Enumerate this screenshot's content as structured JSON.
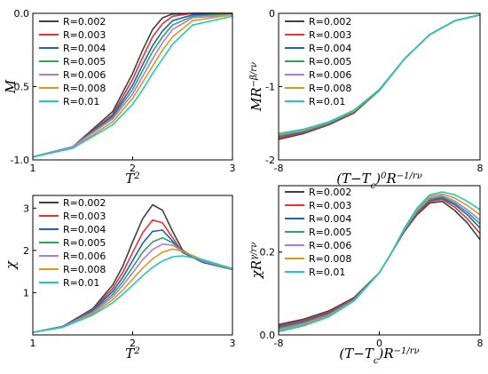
{
  "chart_data": [
    {
      "type": "line",
      "xlabel": "T",
      "xlabel_sup": "2",
      "ylabel": "M",
      "xlim": [
        1,
        3
      ],
      "ylim": [
        -1.0,
        0.0
      ],
      "xticks": [
        1,
        2,
        3
      ],
      "xtick_labels": [
        "1",
        "2",
        "3"
      ],
      "yticks": [
        -1.0,
        -0.5,
        0.0
      ],
      "ytick_labels": [
        "-1.0",
        "-0.5",
        "0.0"
      ],
      "legend": "top-left",
      "grid": false,
      "series": [
        {
          "name": "R=0.002",
          "color": "#404040",
          "x": [
            1.0,
            1.4,
            1.8,
            2.0,
            2.1,
            2.2,
            2.3,
            2.4,
            2.6,
            3.0
          ],
          "y": [
            -0.98,
            -0.91,
            -0.67,
            -0.41,
            -0.25,
            -0.11,
            -0.03,
            -0.005,
            0.0,
            0.0
          ]
        },
        {
          "name": "R=0.003",
          "color": "#e8332f",
          "x": [
            1.0,
            1.4,
            1.8,
            2.0,
            2.1,
            2.2,
            2.3,
            2.4,
            2.6,
            3.0
          ],
          "y": [
            -0.98,
            -0.91,
            -0.69,
            -0.45,
            -0.3,
            -0.16,
            -0.07,
            -0.02,
            0.0,
            0.0
          ]
        },
        {
          "name": "R=0.004",
          "color": "#1f5fc7",
          "x": [
            1.0,
            1.4,
            1.8,
            2.0,
            2.1,
            2.2,
            2.3,
            2.4,
            2.6,
            3.0
          ],
          "y": [
            -0.98,
            -0.91,
            -0.7,
            -0.49,
            -0.35,
            -0.22,
            -0.12,
            -0.05,
            -0.01,
            0.0
          ]
        },
        {
          "name": "R=0.005",
          "color": "#2ea55d",
          "x": [
            1.0,
            1.4,
            1.8,
            2.0,
            2.1,
            2.2,
            2.3,
            2.4,
            2.6,
            3.0
          ],
          "y": [
            -0.98,
            -0.91,
            -0.71,
            -0.52,
            -0.39,
            -0.26,
            -0.16,
            -0.08,
            -0.02,
            0.0
          ]
        },
        {
          "name": "R=0.006",
          "color": "#b07ae0",
          "x": [
            1.0,
            1.4,
            1.8,
            2.0,
            2.1,
            2.2,
            2.3,
            2.4,
            2.6,
            3.0
          ],
          "y": [
            -0.98,
            -0.91,
            -0.72,
            -0.55,
            -0.43,
            -0.31,
            -0.2,
            -0.11,
            -0.03,
            -0.01
          ]
        },
        {
          "name": "R=0.008",
          "color": "#d99a1c",
          "x": [
            1.0,
            1.4,
            1.8,
            2.0,
            2.1,
            2.2,
            2.3,
            2.4,
            2.6,
            3.0
          ],
          "y": [
            -0.98,
            -0.92,
            -0.74,
            -0.58,
            -0.47,
            -0.36,
            -0.25,
            -0.16,
            -0.05,
            -0.01
          ]
        },
        {
          "name": "R=0.01",
          "color": "#1fc9c0",
          "x": [
            1.0,
            1.4,
            1.8,
            2.0,
            2.1,
            2.2,
            2.3,
            2.4,
            2.6,
            3.0
          ],
          "y": [
            -0.98,
            -0.92,
            -0.76,
            -0.62,
            -0.52,
            -0.41,
            -0.31,
            -0.21,
            -0.08,
            -0.02
          ]
        }
      ]
    },
    {
      "type": "line",
      "xlabel": "(T−T",
      "xlabel_sub": "c",
      "xlabel_rest": ")",
      "xlabel_overlap": "0",
      "xlabel_tail": "R",
      "xlabel_sup": "−1/rν",
      "ylabel": "MR",
      "ylabel_sup": "−β/rν",
      "xlim": [
        -8,
        8
      ],
      "ylim": [
        -2,
        0
      ],
      "xticks": [
        -8,
        8
      ],
      "xtick_labels": [
        "-8",
        "8"
      ],
      "yticks": [
        -2,
        -1,
        0
      ],
      "ytick_labels": [
        "-2",
        "-1",
        "0"
      ],
      "legend": "top-left",
      "grid": false,
      "series": [
        {
          "name": "R=0.002",
          "color": "#404040",
          "x": [
            -8,
            -6,
            -4,
            -2,
            0,
            2,
            4,
            6,
            8
          ],
          "y": [
            -1.72,
            -1.64,
            -1.52,
            -1.36,
            -1.05,
            -0.62,
            -0.29,
            -0.1,
            -0.02
          ]
        },
        {
          "name": "R=0.003",
          "color": "#e8332f",
          "x": [
            -8,
            -6,
            -4,
            -2,
            0,
            2,
            4,
            6,
            8
          ],
          "y": [
            -1.7,
            -1.63,
            -1.51,
            -1.35,
            -1.05,
            -0.62,
            -0.29,
            -0.1,
            -0.02
          ]
        },
        {
          "name": "R=0.004",
          "color": "#1f5fc7",
          "x": [
            -8,
            -6,
            -4,
            -2,
            0,
            2,
            4,
            6,
            8
          ],
          "y": [
            -1.68,
            -1.62,
            -1.5,
            -1.34,
            -1.05,
            -0.62,
            -0.29,
            -0.1,
            -0.02
          ]
        },
        {
          "name": "R=0.005",
          "color": "#2ea55d",
          "x": [
            -8,
            -6,
            -4,
            -2,
            0,
            2,
            4,
            6,
            8
          ],
          "y": [
            -1.67,
            -1.61,
            -1.5,
            -1.34,
            -1.05,
            -0.62,
            -0.29,
            -0.1,
            -0.02
          ]
        },
        {
          "name": "R=0.006",
          "color": "#b07ae0",
          "x": [
            -8,
            -6,
            -4,
            -2,
            0,
            2,
            4,
            6,
            8
          ],
          "y": [
            -1.66,
            -1.6,
            -1.49,
            -1.33,
            -1.04,
            -0.62,
            -0.29,
            -0.1,
            -0.02
          ]
        },
        {
          "name": "R=0.008",
          "color": "#d99a1c",
          "x": [
            -8,
            -6,
            -4,
            -2,
            0,
            2,
            4,
            6,
            8
          ],
          "y": [
            -1.65,
            -1.59,
            -1.48,
            -1.33,
            -1.04,
            -0.62,
            -0.29,
            -0.1,
            -0.02
          ]
        },
        {
          "name": "R=0.01",
          "color": "#1fc9c0",
          "x": [
            -8,
            -6,
            -4,
            -2,
            0,
            2,
            4,
            6,
            8
          ],
          "y": [
            -1.64,
            -1.58,
            -1.48,
            -1.32,
            -1.04,
            -0.62,
            -0.29,
            -0.1,
            -0.02
          ]
        }
      ]
    },
    {
      "type": "line",
      "xlabel": "T",
      "xlabel_sup": "2",
      "ylabel": "χ",
      "xlim": [
        1,
        3
      ],
      "ylim": [
        0,
        3.3
      ],
      "xticks": [
        1,
        2,
        3
      ],
      "xtick_labels": [
        "1",
        "2",
        "3"
      ],
      "yticks": [
        1,
        2,
        3
      ],
      "ytick_labels": [
        "1",
        "2",
        "3"
      ],
      "legend": "top-left",
      "grid": false,
      "series": [
        {
          "name": "R=0.002",
          "color": "#404040",
          "x": [
            1.0,
            1.3,
            1.6,
            1.8,
            1.9,
            2.0,
            2.1,
            2.2,
            2.3,
            2.4,
            2.5,
            2.7,
            3.0
          ],
          "y": [
            0.06,
            0.2,
            0.62,
            1.18,
            1.62,
            2.2,
            2.75,
            3.08,
            2.95,
            2.45,
            2.0,
            1.72,
            1.55
          ]
        },
        {
          "name": "R=0.003",
          "color": "#e8332f",
          "x": [
            1.0,
            1.3,
            1.6,
            1.8,
            1.9,
            2.0,
            2.1,
            2.2,
            2.3,
            2.4,
            2.5,
            2.7,
            3.0
          ],
          "y": [
            0.06,
            0.2,
            0.6,
            1.1,
            1.48,
            1.95,
            2.42,
            2.72,
            2.65,
            2.3,
            1.95,
            1.72,
            1.55
          ]
        },
        {
          "name": "R=0.004",
          "color": "#1f5fc7",
          "x": [
            1.0,
            1.3,
            1.6,
            1.8,
            1.9,
            2.0,
            2.1,
            2.2,
            2.3,
            2.4,
            2.5,
            2.7,
            3.0
          ],
          "y": [
            0.06,
            0.2,
            0.58,
            1.03,
            1.36,
            1.76,
            2.17,
            2.45,
            2.48,
            2.22,
            1.95,
            1.72,
            1.55
          ]
        },
        {
          "name": "R=0.005",
          "color": "#2ea55d",
          "x": [
            1.0,
            1.3,
            1.6,
            1.8,
            1.9,
            2.0,
            2.1,
            2.2,
            2.3,
            2.4,
            2.5,
            2.7,
            3.0
          ],
          "y": [
            0.06,
            0.19,
            0.55,
            0.96,
            1.26,
            1.6,
            1.96,
            2.2,
            2.3,
            2.18,
            1.98,
            1.74,
            1.55
          ]
        },
        {
          "name": "R=0.006",
          "color": "#b07ae0",
          "x": [
            1.0,
            1.3,
            1.6,
            1.8,
            1.9,
            2.0,
            2.1,
            2.2,
            2.3,
            2.4,
            2.5,
            2.7,
            3.0
          ],
          "y": [
            0.06,
            0.19,
            0.53,
            0.9,
            1.17,
            1.47,
            1.78,
            2.02,
            2.15,
            2.12,
            1.98,
            1.75,
            1.56
          ]
        },
        {
          "name": "R=0.008",
          "color": "#d99a1c",
          "x": [
            1.0,
            1.3,
            1.6,
            1.8,
            1.9,
            2.0,
            2.1,
            2.2,
            2.3,
            2.4,
            2.5,
            2.7,
            3.0
          ],
          "y": [
            0.06,
            0.18,
            0.5,
            0.83,
            1.06,
            1.32,
            1.58,
            1.8,
            1.96,
            2.03,
            1.98,
            1.78,
            1.56
          ]
        },
        {
          "name": "R=0.01",
          "color": "#1fc9c0",
          "x": [
            1.0,
            1.3,
            1.6,
            1.8,
            1.9,
            2.0,
            2.1,
            2.2,
            2.3,
            2.4,
            2.5,
            2.7,
            3.0
          ],
          "y": [
            0.06,
            0.18,
            0.47,
            0.76,
            0.96,
            1.18,
            1.4,
            1.6,
            1.75,
            1.85,
            1.87,
            1.78,
            1.57
          ]
        }
      ]
    },
    {
      "type": "line",
      "xlabel": "(T−T",
      "xlabel_sub": "c",
      "xlabel_rest": ")",
      "xlabel_overlap": "",
      "xlabel_tail": "R",
      "xlabel_sup": "−1/rν",
      "ylabel": "χR",
      "ylabel_sup": "γ/rν",
      "xlim": [
        -8,
        8
      ],
      "ylim": [
        0,
        0.36
      ],
      "xticks": [
        -8,
        0,
        8
      ],
      "xtick_labels": [
        "-8",
        "0",
        "8"
      ],
      "yticks": [
        0.0,
        0.2
      ],
      "ytick_labels": [
        "0.0",
        "0.2"
      ],
      "legend": "top-left",
      "grid": false,
      "series": [
        {
          "name": "R=0.002",
          "color": "#404040",
          "x": [
            -8,
            -6,
            -4,
            -2,
            0,
            1,
            2,
            3,
            4,
            5,
            6,
            7,
            8
          ],
          "y": [
            0.025,
            0.038,
            0.058,
            0.09,
            0.15,
            0.2,
            0.25,
            0.29,
            0.318,
            0.322,
            0.3,
            0.27,
            0.23
          ]
        },
        {
          "name": "R=0.003",
          "color": "#e8332f",
          "x": [
            -8,
            -6,
            -4,
            -2,
            0,
            1,
            2,
            3,
            4,
            5,
            6,
            7,
            8
          ],
          "y": [
            0.022,
            0.035,
            0.055,
            0.088,
            0.15,
            0.2,
            0.252,
            0.293,
            0.322,
            0.327,
            0.308,
            0.28,
            0.245
          ]
        },
        {
          "name": "R=0.004",
          "color": "#1f5fc7",
          "x": [
            -8,
            -6,
            -4,
            -2,
            0,
            1,
            2,
            3,
            4,
            5,
            6,
            7,
            8
          ],
          "y": [
            0.019,
            0.032,
            0.052,
            0.086,
            0.15,
            0.2,
            0.253,
            0.296,
            0.325,
            0.33,
            0.314,
            0.29,
            0.258
          ]
        },
        {
          "name": "R=0.005",
          "color": "#2ea55d",
          "x": [
            -8,
            -6,
            -4,
            -2,
            0,
            1,
            2,
            3,
            4,
            5,
            6,
            7,
            8
          ],
          "y": [
            0.016,
            0.03,
            0.05,
            0.085,
            0.15,
            0.2,
            0.254,
            0.298,
            0.327,
            0.333,
            0.318,
            0.296,
            0.268
          ]
        },
        {
          "name": "R=0.006",
          "color": "#b07ae0",
          "x": [
            -8,
            -6,
            -4,
            -2,
            0,
            1,
            2,
            3,
            4,
            5,
            6,
            7,
            8
          ],
          "y": [
            0.013,
            0.027,
            0.048,
            0.084,
            0.15,
            0.2,
            0.255,
            0.3,
            0.33,
            0.336,
            0.323,
            0.302,
            0.277
          ]
        },
        {
          "name": "R=0.008",
          "color": "#d99a1c",
          "x": [
            -8,
            -6,
            -4,
            -2,
            0,
            1,
            2,
            3,
            4,
            5,
            6,
            7,
            8
          ],
          "y": [
            0.01,
            0.024,
            0.046,
            0.083,
            0.15,
            0.2,
            0.257,
            0.303,
            0.334,
            0.34,
            0.33,
            0.312,
            0.29
          ]
        },
        {
          "name": "R=0.01",
          "color": "#1fc9c0",
          "x": [
            -8,
            -6,
            -4,
            -2,
            0,
            1,
            2,
            3,
            4,
            5,
            6,
            7,
            8
          ],
          "y": [
            0.008,
            0.022,
            0.044,
            0.082,
            0.15,
            0.2,
            0.258,
            0.306,
            0.338,
            0.345,
            0.338,
            0.322,
            0.302
          ]
        }
      ]
    }
  ]
}
